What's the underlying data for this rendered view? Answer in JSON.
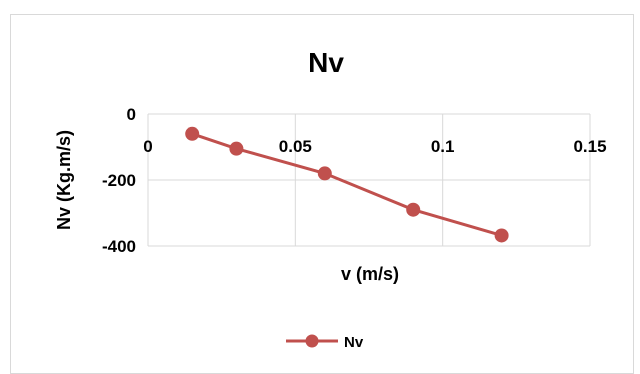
{
  "chart_data": {
    "type": "line",
    "title": "Nv",
    "xlabel": "v (m/s)",
    "ylabel": "Nv (Kg.m/s)",
    "xlim": [
      0,
      0.15
    ],
    "ylim": [
      -400,
      0
    ],
    "x_ticks": [
      0,
      0.05,
      0.1,
      0.15
    ],
    "x_tick_labels": [
      "0",
      "0.05",
      "0.1",
      "0.15"
    ],
    "y_ticks": [
      0,
      -200,
      -400
    ],
    "y_tick_labels": [
      "0",
      "-200",
      "-400"
    ],
    "grid": true,
    "legend_position": "bottom",
    "colors": {
      "series": "#c0504d",
      "grid": "#d9d9d9",
      "axis": "#d9d9d9"
    },
    "series": [
      {
        "name": "Nv",
        "x": [
          0.015,
          0.03,
          0.06,
          0.09,
          0.12
        ],
        "y": [
          -60,
          -105,
          -180,
          -290,
          -368
        ]
      }
    ]
  }
}
